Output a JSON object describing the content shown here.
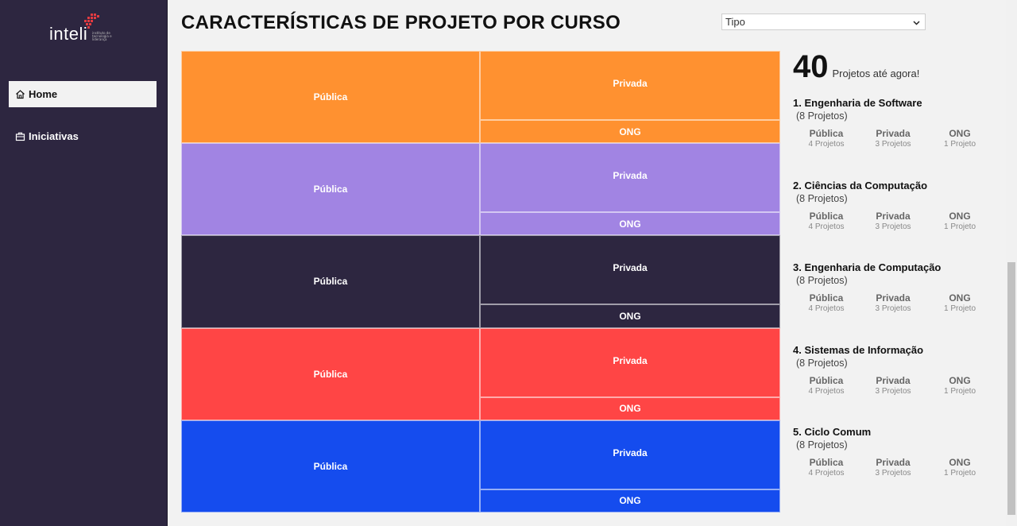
{
  "brand": {
    "name": "inteli",
    "tagline": "instituto de tecnologia e liderança",
    "accent_color": "#e33b41"
  },
  "sidebar": {
    "items": [
      {
        "label": "Home",
        "icon": "home-icon",
        "active": true
      },
      {
        "label": "Iniciativas",
        "icon": "briefcase-icon",
        "active": false
      }
    ]
  },
  "header": {
    "title": "CARACTERÍSTICAS DE PROJETO POR CURSO",
    "select_value": "Tipo"
  },
  "treemap": {
    "groups": [
      {
        "color": "#ff9130",
        "cells": [
          "Pública",
          "Privada",
          "ONG"
        ],
        "values": [
          4,
          3,
          1
        ]
      },
      {
        "color": "#a184e3",
        "cells": [
          "Pública",
          "Privada",
          "ONG"
        ],
        "values": [
          4,
          3,
          1
        ]
      },
      {
        "color": "#2d2640",
        "cells": [
          "Pública",
          "Privada",
          "ONG"
        ],
        "values": [
          4,
          3,
          1
        ]
      },
      {
        "color": "#ff4545",
        "cells": [
          "Pública",
          "Privada",
          "ONG"
        ],
        "values": [
          4,
          3,
          1
        ]
      },
      {
        "color": "#154cee",
        "cells": [
          "Pública",
          "Privada",
          "ONG"
        ],
        "values": [
          4,
          3,
          1
        ]
      }
    ]
  },
  "summary": {
    "total": "40",
    "total_label": "Projetos até agora!",
    "courses": [
      {
        "name": "1. Engenharia de Software",
        "count": "(8 Projetos)",
        "types": [
          {
            "name": "Pública",
            "value": "4 Projetos"
          },
          {
            "name": "Privada",
            "value": "3 Projetos"
          },
          {
            "name": "ONG",
            "value": "1 Projeto"
          }
        ]
      },
      {
        "name": "2. Ciências da Computação",
        "count": "(8 Projetos)",
        "types": [
          {
            "name": "Pública",
            "value": "4 Projetos"
          },
          {
            "name": "Privada",
            "value": "3 Projetos"
          },
          {
            "name": "ONG",
            "value": "1 Projeto"
          }
        ]
      },
      {
        "name": "3. Engenharia de Computação",
        "count": "(8 Projetos)",
        "types": [
          {
            "name": "Pública",
            "value": "4 Projetos"
          },
          {
            "name": "Privada",
            "value": "3 Projetos"
          },
          {
            "name": "ONG",
            "value": "1 Projeto"
          }
        ]
      },
      {
        "name": "4. Sistemas de Informação",
        "count": "(8 Projetos)",
        "types": [
          {
            "name": "Pública",
            "value": "4 Projetos"
          },
          {
            "name": "Privada",
            "value": "3 Projetos"
          },
          {
            "name": "ONG",
            "value": "1 Projeto"
          }
        ]
      },
      {
        "name": "5. Ciclo Comum",
        "count": "(8 Projetos)",
        "types": [
          {
            "name": "Pública",
            "value": "4 Projetos"
          },
          {
            "name": "Privada",
            "value": "3 Projetos"
          },
          {
            "name": "ONG",
            "value": "1 Projeto"
          }
        ]
      }
    ]
  }
}
